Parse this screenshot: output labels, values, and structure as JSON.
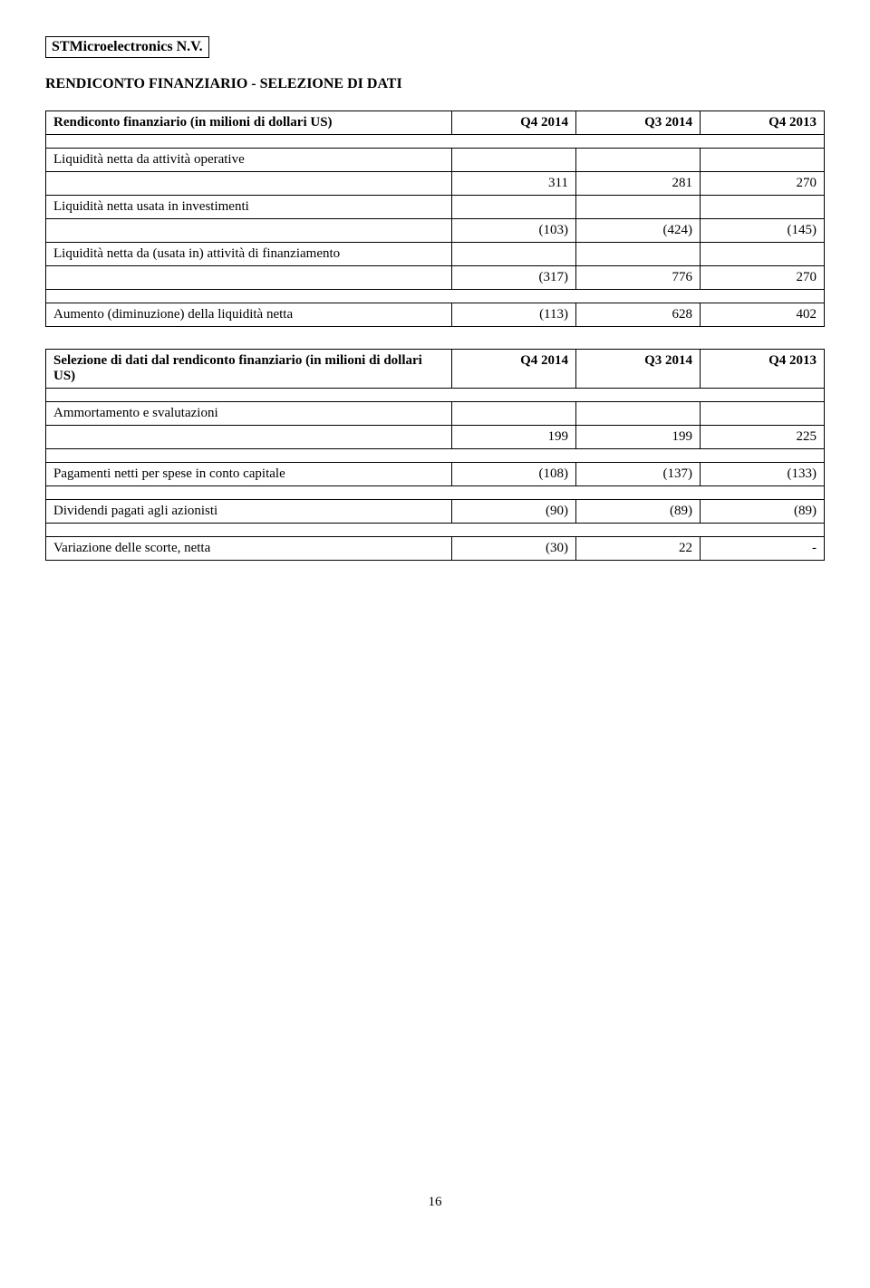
{
  "company": "STMicroelectronics N.V.",
  "section_title": "RENDICONTO FINANZIARIO - SELEZIONE DI DATI",
  "table1": {
    "header": {
      "label": "Rendiconto finanziario (in milioni di dollari US)",
      "col1": "Q4 2014",
      "col2": "Q3 2014",
      "col3": "Q4 2013"
    },
    "rows": [
      {
        "label": "Liquidità netta da attività operative",
        "c1": "",
        "c2": "",
        "c3": ""
      },
      {
        "label": "",
        "c1": "311",
        "c2": "281",
        "c3": "270"
      },
      {
        "label": "Liquidità netta usata in investimenti",
        "c1": "",
        "c2": "",
        "c3": ""
      },
      {
        "label": "",
        "c1": "(103)",
        "c2": "(424)",
        "c3": "(145)"
      },
      {
        "label": "Liquidità netta da (usata in) attività di finanziamento",
        "c1": "",
        "c2": "",
        "c3": ""
      },
      {
        "label": "",
        "c1": "(317)",
        "c2": "776",
        "c3": "270"
      }
    ],
    "summary": {
      "label": "Aumento (diminuzione) della liquidità netta",
      "c1": "(113)",
      "c2": "628",
      "c3": "402"
    }
  },
  "table2": {
    "header": {
      "label": "Selezione di dati dal rendiconto finanziario (in milioni di dollari US)",
      "col1": "Q4 2014",
      "col2": "Q3 2014",
      "col3": "Q4 2013"
    },
    "rows": [
      {
        "label": "Ammortamento e svalutazioni",
        "c1": "",
        "c2": "",
        "c3": ""
      },
      {
        "label": "",
        "c1": "199",
        "c2": "199",
        "c3": "225"
      }
    ],
    "extras": [
      {
        "label": "Pagamenti netti per spese in conto capitale",
        "c1": "(108)",
        "c2": "(137)",
        "c3": "(133)"
      },
      {
        "label": "Dividendi pagati agli azionisti",
        "c1": "(90)",
        "c2": "(89)",
        "c3": "(89)"
      },
      {
        "label": "Variazione delle scorte, netta",
        "c1": "(30)",
        "c2": "22",
        "c3": "-"
      }
    ]
  },
  "page_number": "16"
}
